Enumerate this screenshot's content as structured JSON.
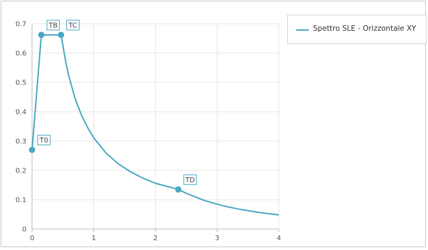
{
  "chart_data": {
    "type": "line",
    "title": "",
    "xlabel": "",
    "ylabel": "",
    "xlim": [
      0,
      4
    ],
    "ylim": [
      0,
      0.7
    ],
    "x_ticks": [
      0,
      1,
      2,
      3,
      4
    ],
    "x_tick_labels": [
      "0",
      "1",
      "2",
      "3",
      "4"
    ],
    "y_ticks": [
      0,
      0.1,
      0.2,
      0.3,
      0.4,
      0.5,
      0.6,
      0.7
    ],
    "y_tick_labels": [
      "0",
      "0.1",
      "0.2",
      "0.3",
      "0.4",
      "0.5",
      "0.6",
      "0.7"
    ],
    "grid": true,
    "legend_position": "top-right",
    "series": [
      {
        "name": "Spettro SLE - Orizzontale XY",
        "color": "#4aa8c2",
        "x": [
          0,
          0.15,
          0.47,
          0.55,
          0.6,
          0.7,
          0.8,
          0.9,
          1.0,
          1.2,
          1.4,
          1.6,
          1.8,
          2.0,
          2.2,
          2.37,
          2.5,
          2.8,
          3.1,
          3.4,
          3.7,
          4.0
        ],
        "y": [
          0.27,
          0.662,
          0.662,
          0.565,
          0.518,
          0.444,
          0.389,
          0.346,
          0.311,
          0.259,
          0.222,
          0.195,
          0.173,
          0.156,
          0.145,
          0.135,
          0.122,
          0.097,
          0.079,
          0.066,
          0.056,
          0.048
        ]
      }
    ],
    "annotations": [
      {
        "label": "T0",
        "x": 0,
        "y": 0.27
      },
      {
        "label": "TB",
        "x": 0.15,
        "y": 0.662
      },
      {
        "label": "TC",
        "x": 0.47,
        "y": 0.662
      },
      {
        "label": "TD",
        "x": 2.37,
        "y": 0.135
      }
    ]
  }
}
